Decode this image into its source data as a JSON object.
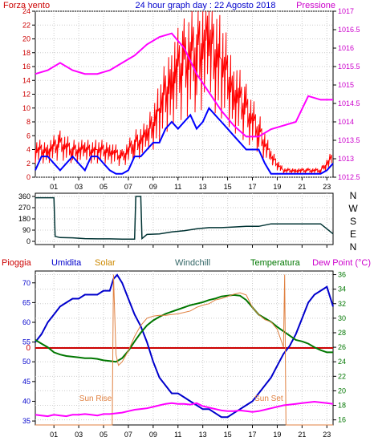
{
  "chart_data": [
    {
      "type": "line",
      "title": "24 hour graph day : 22 Agosto 2018",
      "left_axis_label": "Forza vento",
      "right_axis_label": "Pressione",
      "left_ylim": [
        0,
        24
      ],
      "left_yticks": [
        "0",
        "2",
        "4",
        "6",
        "8",
        "10",
        "12",
        "14",
        "16",
        "18",
        "20",
        "22",
        "24"
      ],
      "right_ylim": [
        1012.5,
        1017
      ],
      "right_yticks": [
        "1012.5",
        "1013",
        "1013.5",
        "1014",
        "1014.5",
        "1015",
        "1015.5",
        "1016",
        "1016.5",
        "1017"
      ],
      "xlim": [
        0,
        24
      ],
      "xticks": [
        "01",
        "03",
        "05",
        "07",
        "09",
        "11",
        "13",
        "15",
        "17",
        "19",
        "21",
        "23"
      ],
      "series": [
        {
          "color": "#ff0000",
          "style": "gusts",
          "x": [
            0,
            1,
            2,
            3,
            4,
            5,
            6,
            7,
            8,
            9,
            10,
            11,
            12,
            13,
            14,
            15,
            16,
            17,
            18,
            19,
            20,
            21,
            22,
            23,
            24
          ],
          "values": [
            4,
            4,
            5,
            4,
            4,
            4,
            4,
            3,
            5,
            6,
            10,
            15,
            17,
            19,
            20,
            17,
            13,
            10,
            7,
            3,
            1,
            1,
            1,
            1,
            3
          ]
        },
        {
          "color": "#0000ff",
          "x": [
            0,
            0.5,
            1,
            1.5,
            2,
            2.5,
            3,
            3.5,
            4,
            4.5,
            5,
            5.5,
            6,
            6.5,
            7,
            7.5,
            8,
            8.5,
            9,
            9.5,
            10,
            10.5,
            11,
            11.5,
            12,
            12.5,
            13,
            13.5,
            14,
            14.5,
            15,
            15.5,
            16,
            16.5,
            17,
            17.5,
            18,
            18.5,
            19,
            19.5,
            20,
            20.5,
            21,
            21.5,
            22,
            22.5,
            23,
            23.5,
            24
          ],
          "values": [
            1,
            3,
            3,
            2,
            1,
            2,
            3,
            2,
            1,
            3,
            3,
            2,
            1,
            0.5,
            0.5,
            1,
            3,
            3,
            4,
            5,
            5,
            7,
            8,
            7,
            8,
            9,
            7,
            8,
            10,
            9,
            8,
            7,
            6,
            5,
            4,
            4,
            4,
            2,
            0.5,
            0.5,
            0.5,
            0.5,
            0.5,
            0.5,
            0.5,
            0.5,
            0.5,
            1,
            2
          ]
        },
        {
          "name": "Pressione",
          "color": "#ff00ff",
          "axis": "right",
          "x": [
            0,
            1,
            2,
            3,
            4,
            5,
            6,
            7,
            8,
            9,
            10,
            11,
            12,
            13,
            14,
            15,
            16,
            17,
            18,
            19,
            20,
            21,
            22,
            23,
            24
          ],
          "values": [
            1015.3,
            1015.4,
            1015.6,
            1015.4,
            1015.3,
            1015.3,
            1015.4,
            1015.6,
            1015.8,
            1016.1,
            1016.3,
            1016.4,
            1016.0,
            1015.3,
            1014.8,
            1014.3,
            1013.9,
            1013.6,
            1013.6,
            1013.8,
            1013.9,
            1014.0,
            1014.7,
            1014.6,
            1014.6
          ]
        }
      ]
    },
    {
      "type": "line",
      "ylim": [
        0,
        360
      ],
      "yticks": [
        "0",
        "90",
        "180",
        "270",
        "360"
      ],
      "right_labels": [
        "N",
        "W",
        "S",
        "E",
        "N"
      ],
      "xlim": [
        0,
        24
      ],
      "xticks": [
        "01",
        "03",
        "05",
        "07",
        "09",
        "11",
        "13",
        "15",
        "17",
        "19",
        "21",
        "23"
      ],
      "series": [
        {
          "color": "#003333",
          "x": [
            0,
            1.5,
            1.6,
            2,
            3,
            4,
            5,
            6,
            7,
            8,
            8.1,
            8.5,
            8.6,
            9,
            10,
            11,
            12,
            13,
            14,
            15,
            16,
            17,
            18,
            19,
            20,
            21,
            22,
            23,
            23.5,
            24
          ],
          "values": [
            350,
            350,
            40,
            30,
            28,
            22,
            20,
            20,
            18,
            18,
            360,
            360,
            22,
            55,
            60,
            75,
            85,
            100,
            110,
            110,
            115,
            120,
            120,
            140,
            140,
            140,
            140,
            140,
            100,
            60
          ]
        }
      ]
    },
    {
      "type": "line",
      "labels": {
        "rain": "Pioggia",
        "humidity": "Umidita",
        "solar": "Solar",
        "windchill": "Windchill",
        "temperature": "Temperatura",
        "dewpoint": "Dew Point (°C)",
        "sunrise": "Sun Rise",
        "sunset": "Sun Set"
      },
      "left_ylim": [
        34,
        73
      ],
      "left_yticks": [
        "35",
        "40",
        "45",
        "50",
        "55",
        "60",
        "65",
        "70"
      ],
      "zero_label": "0",
      "right_ylim": [
        15.3,
        36.5
      ],
      "right_yticks": [
        "16",
        "18",
        "20",
        "22",
        "24",
        "26",
        "28",
        "30",
        "32",
        "34",
        "36"
      ],
      "xlim": [
        0,
        24
      ],
      "xticks": [
        "01",
        "03",
        "05",
        "07",
        "09",
        "11",
        "13",
        "15",
        "17",
        "19",
        "21",
        "23"
      ],
      "sunrise_hour": 6.3,
      "sunset_hour": 20.1,
      "series": [
        {
          "name": "Pioggia",
          "color": "#cc0000",
          "axis": "left",
          "values_constant": 53.5
        },
        {
          "name": "Umidita",
          "color": "#0000cc",
          "axis": "left",
          "x": [
            0,
            0.5,
            1,
            1.5,
            2,
            2.5,
            3,
            3.5,
            4,
            4.5,
            5,
            5.5,
            6,
            6.3,
            6.6,
            7,
            7.5,
            8,
            8.5,
            9,
            9.5,
            10,
            10.5,
            11,
            11.5,
            12,
            12.5,
            13,
            13.5,
            14,
            14.5,
            15,
            15.5,
            16,
            16.5,
            17,
            17.5,
            18,
            18.5,
            19,
            19.5,
            20,
            20.5,
            21,
            21.5,
            22,
            22.5,
            23,
            23.5,
            24
          ],
          "values": [
            55,
            57,
            60,
            62,
            64,
            65,
            66,
            66,
            67,
            67,
            67,
            68,
            68,
            71,
            72,
            70,
            66,
            62,
            59,
            55,
            50,
            46,
            44,
            42,
            42,
            41,
            40,
            39,
            38,
            38,
            37,
            36,
            36,
            37,
            38,
            39,
            40,
            42,
            44,
            46,
            49,
            52,
            54,
            57,
            61,
            65,
            67,
            68,
            69,
            64
          ]
        },
        {
          "name": "Temperatura",
          "color": "#007700",
          "axis": "right",
          "x": [
            0,
            0.5,
            1,
            1.5,
            2,
            2.5,
            3,
            3.5,
            4,
            4.5,
            5,
            5.5,
            6,
            6.5,
            7,
            7.5,
            8,
            8.5,
            9,
            9.5,
            10,
            10.5,
            11,
            11.5,
            12,
            12.5,
            13,
            13.5,
            14,
            14.5,
            15,
            15.5,
            16,
            16.5,
            17,
            17.5,
            18,
            18.5,
            19,
            19.5,
            20,
            20.5,
            21,
            21.5,
            22,
            22.5,
            23,
            23.5,
            24
          ],
          "values": [
            27,
            26.5,
            26,
            25.3,
            25,
            24.8,
            24.7,
            24.6,
            24.5,
            24.5,
            24.4,
            24.2,
            24.1,
            24.0,
            24.5,
            25.5,
            26.8,
            28,
            29,
            29.7,
            30.2,
            30.6,
            30.9,
            31.2,
            31.5,
            31.8,
            32,
            32.2,
            32.5,
            32.7,
            33,
            33.1,
            33.2,
            33.1,
            32.5,
            31.5,
            30.5,
            30,
            29.5,
            28.8,
            28.2,
            27.6,
            27,
            26.8,
            26.5,
            26,
            25.6,
            25.3,
            25.3
          ]
        },
        {
          "name": "Solar",
          "color": "#e08040",
          "axis": "right",
          "x": [
            0,
            6.2,
            6.3,
            6.5,
            6.7,
            7,
            7.5,
            8,
            8.5,
            9,
            9.5,
            10,
            10.5,
            11,
            11.5,
            12,
            12.5,
            13,
            13.5,
            14,
            14.5,
            15,
            15.5,
            16,
            16.5,
            17,
            17.5,
            18,
            18.5,
            19,
            19.5,
            20,
            20.1,
            20.2,
            24
          ],
          "values": [
            15.3,
            15.3,
            36,
            25,
            23.5,
            24,
            25.5,
            27.5,
            29,
            30,
            30.3,
            30.4,
            30.4,
            30.5,
            30.6,
            30.8,
            31,
            31.5,
            31.8,
            32,
            32.5,
            32.7,
            33,
            33.3,
            33.5,
            33.2,
            31.5,
            30.5,
            29.8,
            29.5,
            28.5,
            26,
            36,
            15.3,
            15.3
          ]
        },
        {
          "name": "Dew Point (°C)",
          "color": "#ff00ff",
          "axis": "right",
          "x": [
            0,
            0.5,
            1,
            1.5,
            2,
            2.5,
            3,
            3.5,
            4,
            4.5,
            5,
            5.5,
            6,
            6.5,
            7,
            7.5,
            8,
            8.5,
            9,
            9.5,
            10,
            10.5,
            11,
            11.5,
            12,
            12.5,
            13,
            13.5,
            14,
            14.5,
            15,
            15.5,
            16,
            16.5,
            17,
            17.5,
            18,
            18.5,
            19,
            19.5,
            20,
            20.5,
            21,
            21.5,
            22,
            22.5,
            23,
            23.5,
            24
          ],
          "values": [
            16.7,
            16.6,
            16.5,
            16.7,
            16.6,
            16.5,
            16.7,
            16.7,
            16.8,
            16.7,
            16.6,
            16.8,
            16.8,
            16.9,
            17,
            17.2,
            17.4,
            17.5,
            17.6,
            17.8,
            18,
            18.2,
            18.3,
            18.2,
            18.2,
            18.1,
            18.3,
            17.9,
            17.7,
            17.5,
            17.3,
            17.2,
            17.2,
            17.3,
            17.2,
            17.1,
            17.2,
            17.4,
            17.6,
            17.8,
            18,
            18.1,
            18.2,
            18.3,
            18.4,
            18.5,
            18.4,
            18.3,
            18.2
          ]
        }
      ]
    }
  ]
}
